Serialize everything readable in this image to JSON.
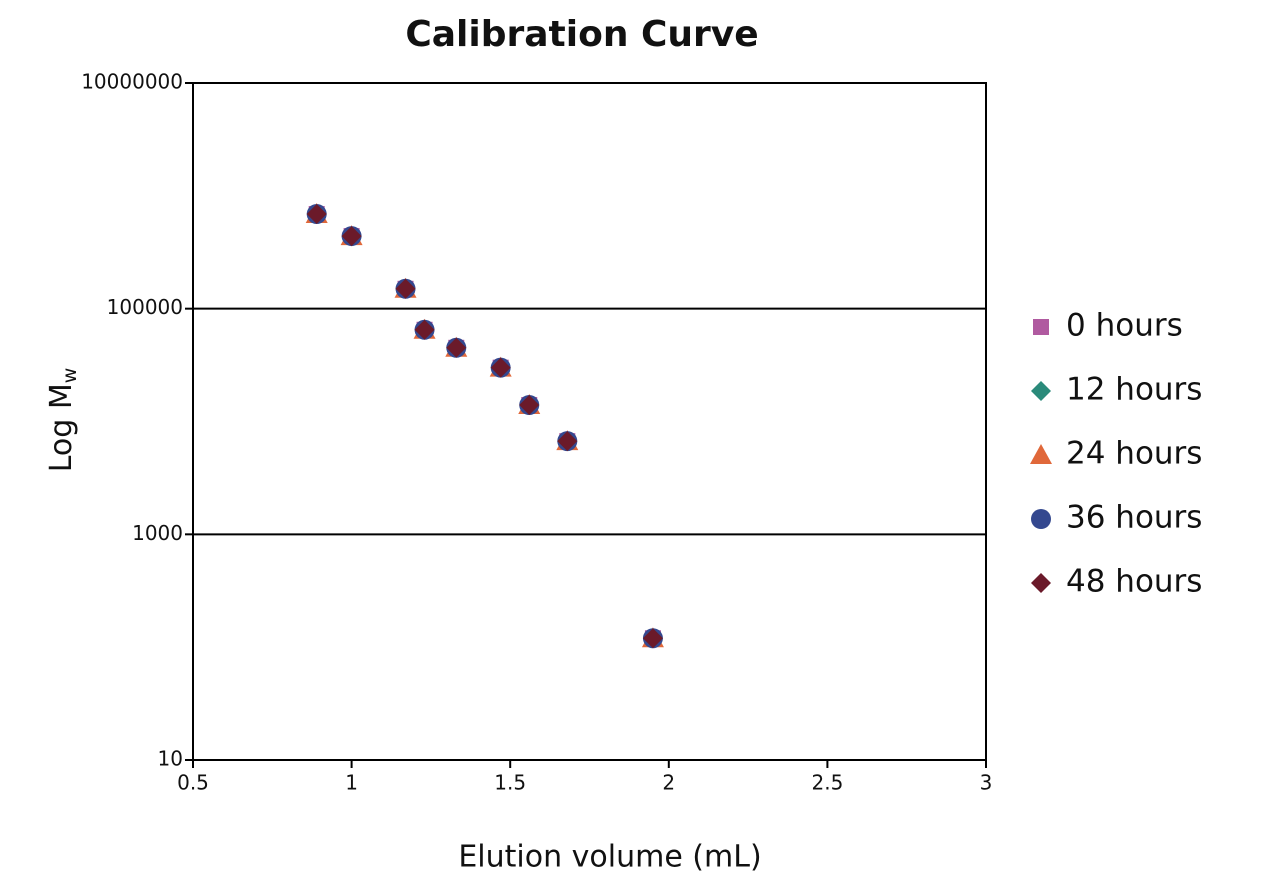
{
  "chart_data": {
    "type": "scatter",
    "title": "Calibration Curve",
    "xlabel": "Elution volume (mL)",
    "ylabel": {
      "text": "Log M",
      "subscript": "w"
    },
    "xlim": [
      0.5,
      3
    ],
    "xticks": [
      0.5,
      1,
      1.5,
      2,
      2.5,
      3
    ],
    "ylim": [
      10,
      10000000
    ],
    "yticks": [
      10,
      1000,
      100000,
      10000000
    ],
    "ylog": true,
    "grid": true,
    "legend": "right",
    "series": [
      {
        "name": "0 hours",
        "color": "#b05aa0",
        "marker": "square",
        "x": [
          0.89,
          1.0,
          1.17,
          1.23,
          1.33,
          1.47,
          1.56,
          1.68,
          1.95
        ],
        "values": [
          690000,
          440000,
          150000,
          65000,
          45000,
          30000,
          14000,
          6700,
          120
        ]
      },
      {
        "name": "12 hours",
        "color": "#2a8a7a",
        "marker": "diamond",
        "x": [
          0.89,
          1.0,
          1.17,
          1.23,
          1.33,
          1.47,
          1.56,
          1.68,
          1.95
        ],
        "values": [
          690000,
          440000,
          150000,
          65000,
          45000,
          30000,
          14000,
          6700,
          120
        ]
      },
      {
        "name": "24 hours",
        "color": "#e0683a",
        "marker": "triangle",
        "x": [
          0.89,
          1.0,
          1.17,
          1.23,
          1.33,
          1.47,
          1.56,
          1.68,
          1.95
        ],
        "values": [
          690000,
          440000,
          150000,
          65000,
          45000,
          30000,
          14000,
          6700,
          120
        ]
      },
      {
        "name": "36 hours",
        "color": "#34488f",
        "marker": "circle",
        "x": [
          0.89,
          1.0,
          1.17,
          1.23,
          1.33,
          1.47,
          1.56,
          1.68,
          1.95
        ],
        "values": [
          690000,
          440000,
          150000,
          65000,
          45000,
          30000,
          14000,
          6700,
          120
        ]
      },
      {
        "name": "48 hours",
        "color": "#6b1a2a",
        "marker": "diamond",
        "x": [
          0.89,
          1.0,
          1.17,
          1.23,
          1.33,
          1.47,
          1.56,
          1.68,
          1.95
        ],
        "values": [
          690000,
          440000,
          150000,
          65000,
          45000,
          30000,
          14000,
          6700,
          120
        ]
      }
    ]
  }
}
